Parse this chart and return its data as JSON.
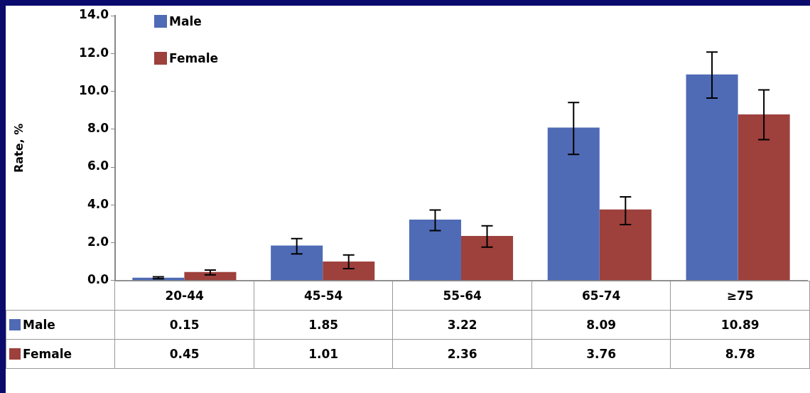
{
  "chart_data": {
    "type": "bar",
    "ylabel": "Rate, %",
    "categories": [
      "20-44",
      "45-54",
      "55-64",
      "65-74",
      "≥75"
    ],
    "series": [
      {
        "name": "Male",
        "color": "#4f6bb5",
        "values": [
          0.15,
          1.85,
          3.22,
          8.09,
          10.89
        ],
        "errors": [
          [
            0.1,
            0.2
          ],
          [
            1.41,
            2.22
          ],
          [
            2.64,
            3.73
          ],
          [
            6.67,
            9.41
          ],
          [
            9.64,
            12.08
          ]
        ]
      },
      {
        "name": "Female",
        "color": "#9e403c",
        "values": [
          0.45,
          1.01,
          2.36,
          3.76,
          8.78
        ],
        "errors": [
          [
            0.3,
            0.56
          ],
          [
            0.63,
            1.35
          ],
          [
            1.77,
            2.89
          ],
          [
            2.96,
            4.42
          ],
          [
            7.45,
            10.08
          ]
        ]
      }
    ],
    "ylim": [
      0,
      14
    ],
    "yticks": [
      {
        "value": 0,
        "label": "0.0"
      },
      {
        "value": 2,
        "label": "2.0"
      },
      {
        "value": 4,
        "label": "4.0"
      },
      {
        "value": 6,
        "label": "6.0"
      },
      {
        "value": 8,
        "label": "8.0"
      },
      {
        "value": 10,
        "label": "10.0"
      },
      {
        "value": 12,
        "label": "12.0"
      },
      {
        "value": 14,
        "label": "14.0"
      }
    ],
    "grid": false,
    "legend": "top left",
    "data_labels": true
  }
}
